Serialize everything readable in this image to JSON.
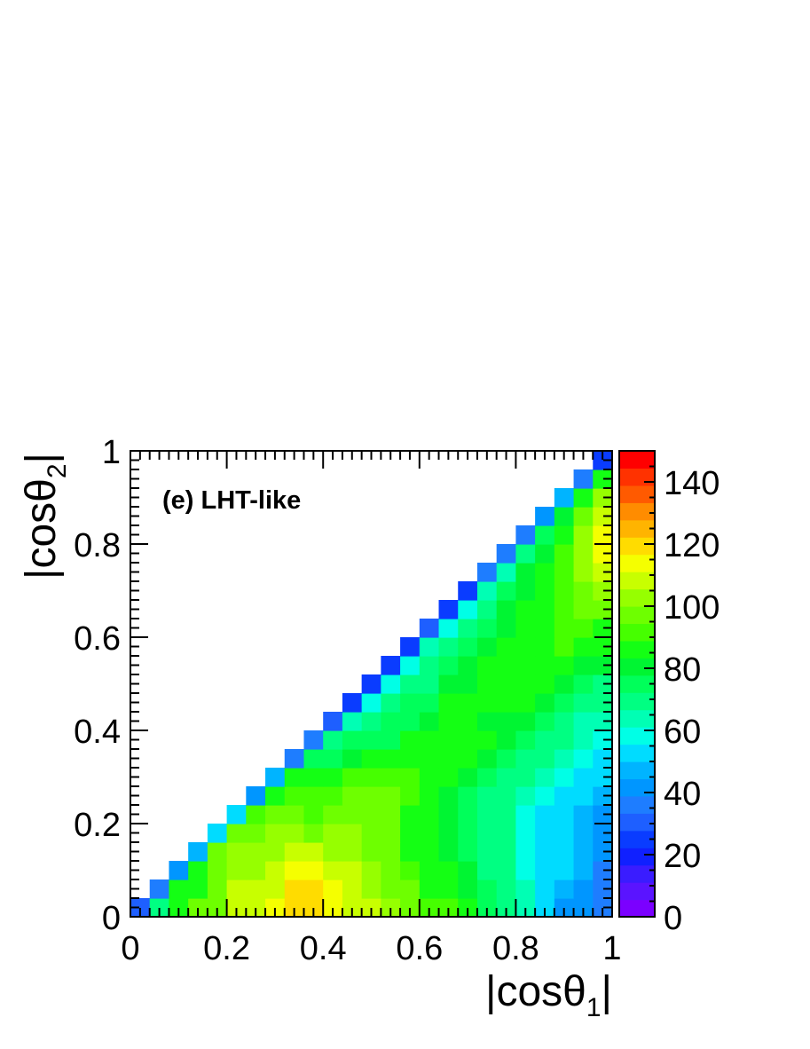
{
  "chart_data": {
    "type": "heatmap",
    "annotation": "(e) LHT-like",
    "xlabel": "|cosθ1|",
    "ylabel": "|cosθ2|",
    "xlim": [
      0,
      1
    ],
    "ylim": [
      0,
      1
    ],
    "x_ticks": [
      "0",
      "0.2",
      "0.4",
      "0.6",
      "0.8",
      "1"
    ],
    "y_ticks": [
      "0",
      "0.2",
      "0.4",
      "0.6",
      "0.8",
      "1"
    ],
    "x_bins": 25,
    "y_bins": 25,
    "z_range": [
      0,
      150
    ],
    "colorbar_ticks": [
      "0",
      "20",
      "40",
      "60",
      "80",
      "100",
      "120",
      "140"
    ],
    "palette": [
      "#7b00ff",
      "#5a14ff",
      "#3a1cff",
      "#1020ff",
      "#0a3cff",
      "#1e5fff",
      "#1e7dff",
      "#0096ff",
      "#00b4ff",
      "#00dcff",
      "#00ffe6",
      "#00ffb4",
      "#00ff82",
      "#00ff5a",
      "#00f532",
      "#14ff14",
      "#46ff00",
      "#6eff00",
      "#96ff00",
      "#c8ff00",
      "#f5ff00",
      "#ffdc00",
      "#ffb400",
      "#ff8c00",
      "#ff5a00",
      "#ff3200",
      "#ff0000"
    ],
    "values": [
      [
        30,
        70,
        85,
        95,
        95,
        110,
        110,
        115,
        118,
        118,
        115,
        110,
        110,
        100,
        95,
        92,
        90,
        85,
        75,
        70,
        65,
        50,
        40,
        40,
        35
      ],
      [
        null,
        35,
        85,
        85,
        95,
        110,
        110,
        110,
        118,
        118,
        112,
        108,
        100,
        95,
        95,
        88,
        85,
        80,
        75,
        70,
        65,
        55,
        45,
        40,
        35
      ],
      [
        null,
        null,
        40,
        85,
        95,
        105,
        105,
        108,
        112,
        112,
        108,
        108,
        100,
        95,
        90,
        88,
        85,
        78,
        72,
        70,
        60,
        55,
        55,
        45,
        35
      ],
      [
        null,
        null,
        null,
        45,
        95,
        100,
        100,
        100,
        108,
        108,
        100,
        100,
        95,
        95,
        88,
        88,
        82,
        76,
        72,
        68,
        60,
        55,
        55,
        45,
        40
      ],
      [
        null,
        null,
        null,
        null,
        50,
        95,
        95,
        100,
        100,
        95,
        100,
        100,
        95,
        95,
        88,
        88,
        80,
        75,
        70,
        68,
        60,
        55,
        55,
        45,
        40
      ],
      [
        null,
        null,
        null,
        null,
        null,
        55,
        90,
        95,
        95,
        90,
        95,
        95,
        95,
        95,
        88,
        88,
        80,
        75,
        70,
        68,
        60,
        55,
        50,
        45,
        40
      ],
      [
        null,
        null,
        null,
        null,
        null,
        null,
        40,
        85,
        90,
        90,
        90,
        95,
        95,
        95,
        90,
        88,
        82,
        76,
        72,
        68,
        65,
        60,
        55,
        50,
        45
      ],
      [
        null,
        null,
        null,
        null,
        null,
        null,
        null,
        45,
        85,
        85,
        85,
        90,
        90,
        90,
        90,
        88,
        85,
        80,
        76,
        72,
        70,
        65,
        58,
        55,
        50
      ],
      [
        null,
        null,
        null,
        null,
        null,
        null,
        null,
        null,
        35,
        75,
        75,
        80,
        85,
        85,
        85,
        88,
        85,
        85,
        80,
        76,
        72,
        70,
        65,
        60,
        55
      ],
      [
        null,
        null,
        null,
        null,
        null,
        null,
        null,
        null,
        null,
        35,
        70,
        75,
        75,
        75,
        85,
        85,
        88,
        85,
        85,
        80,
        76,
        72,
        70,
        65,
        60
      ],
      [
        null,
        null,
        null,
        null,
        null,
        null,
        null,
        null,
        null,
        null,
        30,
        65,
        70,
        75,
        75,
        82,
        85,
        85,
        82,
        80,
        78,
        74,
        70,
        65,
        62
      ],
      [
        null,
        null,
        null,
        null,
        null,
        null,
        null,
        null,
        null,
        null,
        null,
        25,
        60,
        70,
        75,
        75,
        85,
        85,
        85,
        85,
        85,
        80,
        75,
        70,
        68
      ],
      [
        null,
        null,
        null,
        null,
        null,
        null,
        null,
        null,
        null,
        null,
        null,
        null,
        25,
        60,
        70,
        72,
        78,
        82,
        85,
        85,
        85,
        85,
        80,
        75,
        72
      ],
      [
        null,
        null,
        null,
        null,
        null,
        null,
        null,
        null,
        null,
        null,
        null,
        null,
        null,
        25,
        60,
        70,
        75,
        80,
        85,
        85,
        88,
        88,
        88,
        82,
        78
      ],
      [
        null,
        null,
        null,
        null,
        null,
        null,
        null,
        null,
        null,
        null,
        null,
        null,
        null,
        null,
        25,
        65,
        70,
        75,
        80,
        85,
        88,
        88,
        90,
        88,
        85
      ],
      [
        null,
        null,
        null,
        null,
        null,
        null,
        null,
        null,
        null,
        null,
        null,
        null,
        null,
        null,
        null,
        30,
        60,
        70,
        75,
        82,
        88,
        88,
        90,
        92,
        88
      ],
      [
        null,
        null,
        null,
        null,
        null,
        null,
        null,
        null,
        null,
        null,
        null,
        null,
        null,
        null,
        null,
        null,
        25,
        60,
        70,
        78,
        85,
        88,
        92,
        95,
        95
      ],
      [
        null,
        null,
        null,
        null,
        null,
        null,
        null,
        null,
        null,
        null,
        null,
        null,
        null,
        null,
        null,
        null,
        null,
        25,
        65,
        75,
        82,
        88,
        92,
        98,
        100
      ],
      [
        null,
        null,
        null,
        null,
        null,
        null,
        null,
        null,
        null,
        null,
        null,
        null,
        null,
        null,
        null,
        null,
        null,
        null,
        35,
        65,
        78,
        85,
        90,
        100,
        108
      ],
      [
        null,
        null,
        null,
        null,
        null,
        null,
        null,
        null,
        null,
        null,
        null,
        null,
        null,
        null,
        null,
        null,
        null,
        null,
        null,
        35,
        70,
        82,
        90,
        102,
        112
      ],
      [
        null,
        null,
        null,
        null,
        null,
        null,
        null,
        null,
        null,
        null,
        null,
        null,
        null,
        null,
        null,
        null,
        null,
        null,
        null,
        null,
        35,
        75,
        88,
        100,
        112
      ],
      [
        null,
        null,
        null,
        null,
        null,
        null,
        null,
        null,
        null,
        null,
        null,
        null,
        null,
        null,
        null,
        null,
        null,
        null,
        null,
        null,
        null,
        40,
        80,
        95,
        108
      ],
      [
        null,
        null,
        null,
        null,
        null,
        null,
        null,
        null,
        null,
        null,
        null,
        null,
        null,
        null,
        null,
        null,
        null,
        null,
        null,
        null,
        null,
        null,
        45,
        85,
        100
      ],
      [
        null,
        null,
        null,
        null,
        null,
        null,
        null,
        null,
        null,
        null,
        null,
        null,
        null,
        null,
        null,
        null,
        null,
        null,
        null,
        null,
        null,
        null,
        null,
        35,
        85
      ],
      [
        null,
        null,
        null,
        null,
        null,
        null,
        null,
        null,
        null,
        null,
        null,
        null,
        null,
        null,
        null,
        null,
        null,
        null,
        null,
        null,
        null,
        null,
        null,
        null,
        25
      ]
    ]
  }
}
